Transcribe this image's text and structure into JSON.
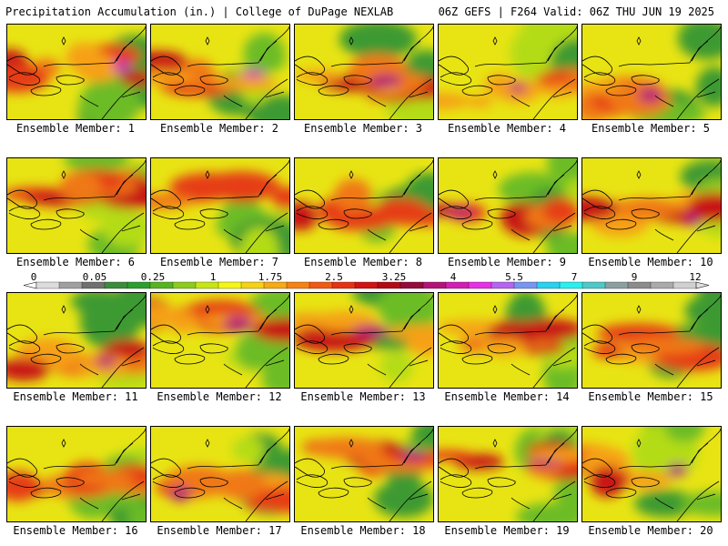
{
  "header": {
    "left_title": "Precipitation Accumulation (in.) | College of DuPage NEXLAB",
    "right_title": "06Z GEFS | F264 Valid: 06Z THU JUN 19 2025"
  },
  "panels": [
    {
      "label": "Ensemble Member: 1"
    },
    {
      "label": "Ensemble Member: 2"
    },
    {
      "label": "Ensemble Member: 3"
    },
    {
      "label": "Ensemble Member: 4"
    },
    {
      "label": "Ensemble Member: 5"
    },
    {
      "label": "Ensemble Member: 6"
    },
    {
      "label": "Ensemble Member: 7"
    },
    {
      "label": "Ensemble Member: 8"
    },
    {
      "label": "Ensemble Member: 9"
    },
    {
      "label": "Ensemble Member: 10"
    },
    {
      "label": "Ensemble Member: 11"
    },
    {
      "label": "Ensemble Member: 12"
    },
    {
      "label": "Ensemble Member: 13"
    },
    {
      "label": "Ensemble Member: 14"
    },
    {
      "label": "Ensemble Member: 15"
    },
    {
      "label": "Ensemble Member: 16"
    },
    {
      "label": "Ensemble Member: 17"
    },
    {
      "label": "Ensemble Member: 18"
    },
    {
      "label": "Ensemble Member: 19"
    },
    {
      "label": "Ensemble Member: 20"
    }
  ],
  "color_scale": {
    "tick_labels": [
      "0",
      "0.05",
      "0.25",
      "1",
      "1.75",
      "2.5",
      "3.25",
      "4",
      "5.5",
      "7",
      "9",
      "12"
    ],
    "colors": [
      "#dcdcdc",
      "#a0a0a0",
      "#707070",
      "#3c8c3c",
      "#2e9e2e",
      "#56b424",
      "#8ccc1c",
      "#c8e614",
      "#f6f614",
      "#f6d214",
      "#f6aa14",
      "#f68214",
      "#f05a14",
      "#e63214",
      "#d21414",
      "#b40a14",
      "#960a3c",
      "#b41478",
      "#d21eb4",
      "#e632e6",
      "#b464f0",
      "#7896f0",
      "#28d2f0",
      "#28f0f0",
      "#50c8c8",
      "#8ca0a0",
      "#8c8c8c",
      "#aaaaaa",
      "#d0d0d0"
    ]
  }
}
